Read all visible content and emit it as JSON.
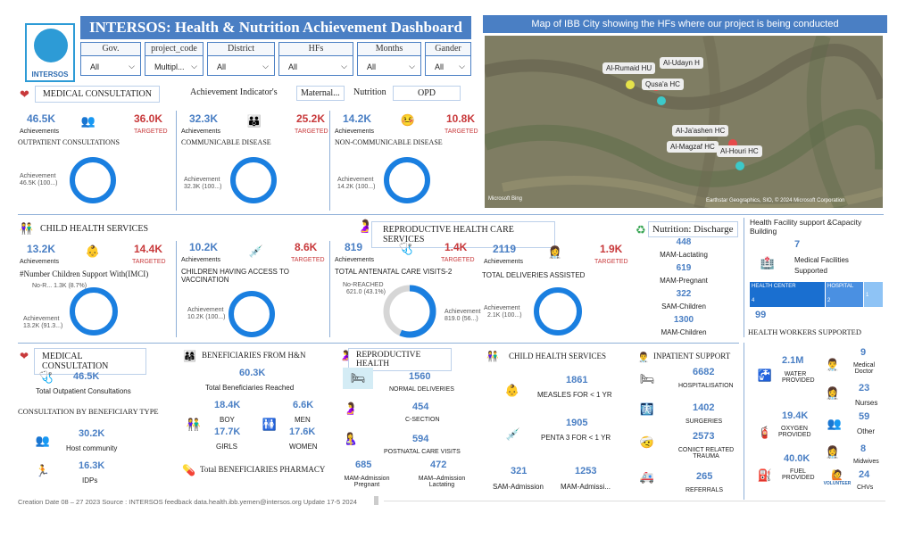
{
  "header": {
    "title": "INTERSOS: Health & Nutrition Achievement Dashboard",
    "logo_text": "INTERSOS"
  },
  "filters": [
    {
      "label": "Gov.",
      "value": "All"
    },
    {
      "label": "project_code",
      "value": "Multipl..."
    },
    {
      "label": "District",
      "value": "All"
    },
    {
      "label": "HFs",
      "value": "All"
    },
    {
      "label": "Months",
      "value": "All"
    },
    {
      "label": "Gander",
      "value": "All"
    }
  ],
  "tabs": {
    "achievement": "Achievement Indicator's",
    "maternal": "Maternal...",
    "nutrition": "Nutrition",
    "opd": "OPD"
  },
  "map": {
    "title": "Map of IBB City showing the HFs where our project is being conducted",
    "pins": [
      "Al-Udayn H",
      "Al-Rumaid HU",
      "Qusa'a HC",
      "Al-Ja'ashen HC",
      "Al-Magzaf HC",
      "Al-Houri HC"
    ],
    "attribution": "Earthstar Geographics, SIO, © 2024 Microsoft Corporation",
    "bing": "Microsoft Bing"
  },
  "medical": {
    "title": "MEDICAL CONSULTATION",
    "outpatient": {
      "achieved": "46.5K",
      "ach_label": "Achievements",
      "target": "36.0K",
      "tgt_label": "TARGETED",
      "name": "OUTPATIENT CONSULTATIONS",
      "ring_label": "Achievement",
      "ring_value": "46.5K (100...)"
    },
    "communicable": {
      "achieved": "32.3K",
      "ach_label": "Achievements",
      "target": "25.2K",
      "tgt_label": "TARGETED",
      "name": "COMMUNICABLE DISEASE",
      "ring_label": "Achievement",
      "ring_value": "32.3K (100...)"
    },
    "noncommunicable": {
      "achieved": "14.2K",
      "ach_label": "Achievements",
      "target": "10.8K",
      "tgt_label": "TARGETED",
      "name": "NON-COMMUNICABLE DISEASE",
      "ring_label": "Achievement",
      "ring_value": "14.2K (100...)"
    }
  },
  "child": {
    "title": "CHILD HEALTH SERVICES",
    "imci": {
      "achieved": "13.2K",
      "ach_label": "Achievements",
      "target": "14.4K",
      "tgt_label": "TARGETED",
      "name": "#Number Children Support With(IMCI)",
      "no_label": "No-R... 1.3K (8.7%)",
      "ring_label": "Achievement",
      "ring_value": "13.2K (91.3...)"
    },
    "vaccination": {
      "achieved": "10.2K",
      "ach_label": "Achievements",
      "target": "8.6K",
      "tgt_label": "TARGETED",
      "name": "CHILDREN HAVING ACCESS TO VACCINATION",
      "ring_label": "Achievement",
      "ring_value": "10.2K (100...)"
    }
  },
  "repro": {
    "title": "REPRODUCTIVE HEALTH CARE SERVICES",
    "antenatal": {
      "achieved": "819",
      "ach_label": "Achievements",
      "target": "1.4K",
      "tgt_label": "TARGETED",
      "name": "TOTAL ANTENATAL CARE VISITS-2",
      "no_label": "No-REACHED",
      "no_value": "621.0 (43.1%)",
      "ring_label": "Achievement",
      "ring_value": "819.0 (56...)"
    },
    "deliveries": {
      "achieved": "2119",
      "ach_label": "Achievements",
      "target": "1.9K",
      "tgt_label": "TARGETED",
      "name": "TOTAL DELIVERIES ASSISTED",
      "ring_label": "Achievement",
      "ring_value": "2.1K (100...)"
    }
  },
  "nutrition": {
    "title": "Nutrition: Discharge",
    "items": [
      {
        "v": "448",
        "l": "MAM-Lactating"
      },
      {
        "v": "619",
        "l": "MAM-Pregnant"
      },
      {
        "v": "322",
        "l": "SAM-Children"
      },
      {
        "v": "1300",
        "l": "MAM-Children"
      }
    ]
  },
  "facility": {
    "title": "Health Facility support &Capacity Building",
    "count": "7",
    "count_label": "Medical Facilities Supported",
    "bars": [
      {
        "l": "HEALTH CENTER",
        "v": "4",
        "color": "#1a6fd0"
      },
      {
        "l": "HOSPITAL",
        "v": "2",
        "color": "#4a90e2"
      },
      {
        "l": "",
        "v": "1",
        "color": "#8ec3f5"
      }
    ],
    "workers_count": "99",
    "workers_title": "HEALTH WORKERS SUPPORTED"
  },
  "bottom": {
    "med": {
      "title": "MEDICAL CONSULTATION",
      "value": "46.5K",
      "label": "Total Outpatient Consultations",
      "bytype": "CONSULTATION BY BENEFICIARY TYPE",
      "host_v": "30.2K",
      "host_l": "Host community",
      "idp_v": "16.3K",
      "idp_l": "IDPs"
    },
    "ben": {
      "title": "BENEFICIARIES FROM H&N",
      "total_v": "60.3K",
      "total_l": "Total Beneficiaries  Reached",
      "boy_v": "18.4K",
      "boy_l": "BOY",
      "men_v": "6.6K",
      "men_l": "MEN",
      "girls_v": "17.7K",
      "girls_l": "GIRLS",
      "women_v": "17.6K",
      "women_l": "WOMEN",
      "pharm": "Total BENEFICIARIES PHARMACY"
    },
    "repro": {
      "title": "REPRODUCTIVE HEALTH",
      "normal_v": "1560",
      "normal_l": "NORMAL DELIVERIES",
      "cs_v": "454",
      "cs_l": "C-SECTION",
      "post_v": "594",
      "post_l": "POSTNATAL CARE VISITS",
      "mamp_v": "685",
      "mamp_l": "MAM-Admission Pregnant",
      "maml_v": "472",
      "maml_l": "MAM–Admission Lactating"
    },
    "child": {
      "title": "CHILD HEALTH SERVICES",
      "measles_v": "1861",
      "measles_l": "MEASLES FOR < 1 YR",
      "penta_v": "1905",
      "penta_l": "PENTA 3 FOR < 1 YR",
      "sam_v": "321",
      "sam_l": "SAM-Admission",
      "mam_v": "1253",
      "mam_l": "MAM-Admissi..."
    },
    "inpatient": {
      "title": "INPATIENT SUPPORT",
      "hosp_v": "6682",
      "hosp_l": "HOSPITALISATION",
      "surg_v": "1402",
      "surg_l": "SURGERIES",
      "trauma_v": "2573",
      "trauma_l": "CONIICT RELATED TRAUMA",
      "ref_v": "265",
      "ref_l": "REFERRALS"
    },
    "supplies": {
      "water_v": "2.1M",
      "water_l": "WATER PROVIDED",
      "oxy_v": "19.4K",
      "oxy_l": "OXYGEN PROVIDED",
      "fuel_v": "40.0K",
      "fuel_l": "FUEL PROVIDED",
      "volunteer": "VOLUNTEER"
    },
    "staff": {
      "doc_v": "9",
      "doc_l": "Medical Doctor",
      "nurse_v": "23",
      "nurse_l": "Nurses",
      "other_v": "59",
      "other_l": "Other",
      "mid_v": "8",
      "mid_l": "Midwives",
      "chv_v": "24",
      "chv_l": "CHVs"
    }
  },
  "footer": "Creation Date 08 – 27 2023 Source : INTERSOS feedback data.health.ibb.yemen@intersos.org Update 17-5 2024"
}
